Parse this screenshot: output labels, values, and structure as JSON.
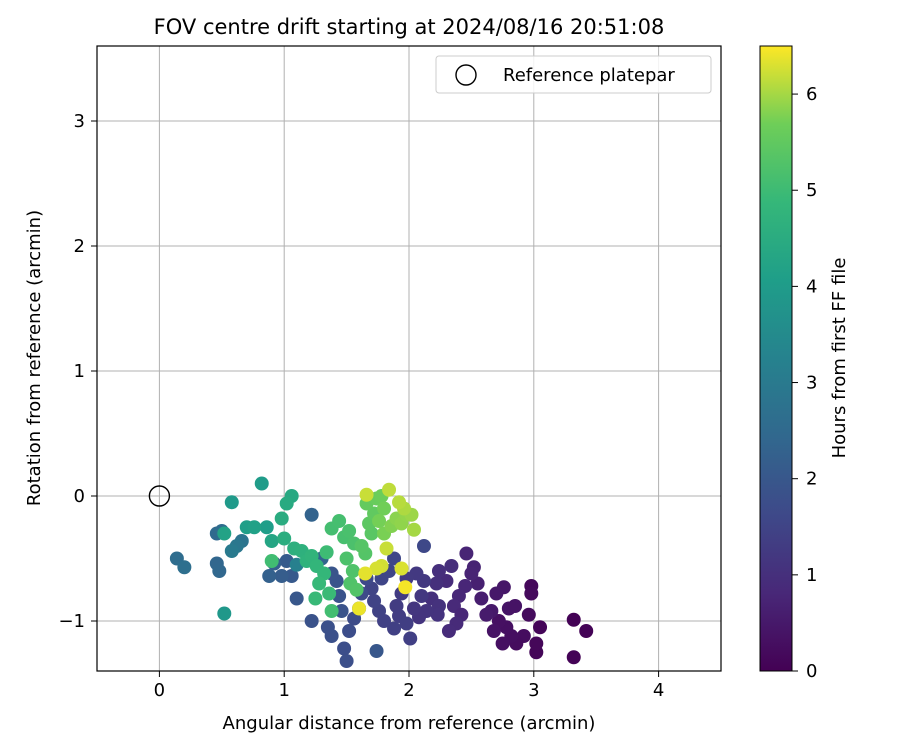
{
  "chart_data": {
    "type": "scatter",
    "title": "FOV centre drift starting at 2024/08/16 20:51:08",
    "xlabel": "Angular distance from reference (arcmin)",
    "ylabel": "Rotation from reference (arcmin)",
    "xlim": [
      -0.5,
      4.5
    ],
    "ylim": [
      -1.4,
      3.6
    ],
    "x_ticks": [
      0,
      1,
      2,
      3,
      4
    ],
    "y_ticks": [
      -1,
      0,
      1,
      2,
      3
    ],
    "x_tick_labels": [
      "0",
      "1",
      "2",
      "3",
      "4"
    ],
    "y_tick_labels": [
      "−1",
      "0",
      "1",
      "2",
      "3"
    ],
    "grid": true,
    "legend": {
      "position": "top-right",
      "entries": [
        {
          "label": "Reference platepar",
          "marker": "open-circle"
        }
      ]
    },
    "reference_point": {
      "x": 0,
      "y": 0
    },
    "colorbar": {
      "label": "Hours from first FF file",
      "colormap": "viridis",
      "range": [
        0,
        6.5
      ],
      "ticks": [
        0,
        1,
        2,
        3,
        4,
        5,
        6
      ],
      "tick_labels": [
        "0",
        "1",
        "2",
        "3",
        "4",
        "5",
        "6"
      ]
    },
    "point_color_value_label": "Hours from first FF file",
    "series": [
      {
        "points": [
          {
            "x": 3.32,
            "y": -1.29,
            "c": 0.05
          },
          {
            "x": 3.02,
            "y": -1.25,
            "c": 0.1
          },
          {
            "x": 3.02,
            "y": -1.18,
            "c": 0.12
          },
          {
            "x": 3.05,
            "y": -1.05,
            "c": 0.08
          },
          {
            "x": 3.32,
            "y": -0.99,
            "c": 0.03
          },
          {
            "x": 3.42,
            "y": -1.08,
            "c": 0.04
          },
          {
            "x": 2.98,
            "y": -0.72,
            "c": 0.15
          },
          {
            "x": 2.98,
            "y": -0.78,
            "c": 0.18
          },
          {
            "x": 2.96,
            "y": -0.95,
            "c": 0.2
          },
          {
            "x": 2.92,
            "y": -1.12,
            "c": 0.25
          },
          {
            "x": 2.86,
            "y": -1.18,
            "c": 0.22
          },
          {
            "x": 2.82,
            "y": -1.12,
            "c": 0.28
          },
          {
            "x": 2.78,
            "y": -1.05,
            "c": 0.3
          },
          {
            "x": 2.72,
            "y": -1.0,
            "c": 0.32
          },
          {
            "x": 2.68,
            "y": -1.08,
            "c": 0.35
          },
          {
            "x": 2.75,
            "y": -1.18,
            "c": 0.3
          },
          {
            "x": 2.8,
            "y": -0.9,
            "c": 0.4
          },
          {
            "x": 2.85,
            "y": -0.88,
            "c": 0.38
          },
          {
            "x": 2.76,
            "y": -0.73,
            "c": 0.45
          },
          {
            "x": 2.7,
            "y": -0.78,
            "c": 0.48
          },
          {
            "x": 2.66,
            "y": -0.92,
            "c": 0.5
          },
          {
            "x": 2.62,
            "y": -0.95,
            "c": 0.55
          },
          {
            "x": 2.58,
            "y": -0.82,
            "c": 0.6
          },
          {
            "x": 2.55,
            "y": -0.7,
            "c": 0.65
          },
          {
            "x": 2.52,
            "y": -0.57,
            "c": 0.7
          },
          {
            "x": 2.46,
            "y": -0.46,
            "c": 0.75
          },
          {
            "x": 2.5,
            "y": -0.62,
            "c": 0.72
          },
          {
            "x": 2.45,
            "y": -0.72,
            "c": 0.78
          },
          {
            "x": 2.4,
            "y": -0.8,
            "c": 0.82
          },
          {
            "x": 2.36,
            "y": -0.88,
            "c": 0.85
          },
          {
            "x": 2.42,
            "y": -0.95,
            "c": 0.8
          },
          {
            "x": 2.38,
            "y": -1.02,
            "c": 0.88
          },
          {
            "x": 2.32,
            "y": -1.08,
            "c": 0.9
          },
          {
            "x": 2.3,
            "y": -0.68,
            "c": 0.92
          },
          {
            "x": 2.34,
            "y": -0.56,
            "c": 0.95
          },
          {
            "x": 2.24,
            "y": -0.6,
            "c": 0.98
          },
          {
            "x": 2.22,
            "y": -0.7,
            "c": 1.0
          },
          {
            "x": 2.18,
            "y": -0.82,
            "c": 1.02
          },
          {
            "x": 2.24,
            "y": -0.88,
            "c": 1.05
          },
          {
            "x": 2.23,
            "y": -0.95,
            "c": 1.08
          },
          {
            "x": 2.14,
            "y": -0.92,
            "c": 1.1
          },
          {
            "x": 2.08,
            "y": -0.97,
            "c": 1.12
          },
          {
            "x": 2.04,
            "y": -0.9,
            "c": 1.15
          },
          {
            "x": 2.1,
            "y": -0.8,
            "c": 1.18
          },
          {
            "x": 2.12,
            "y": -0.68,
            "c": 1.2
          },
          {
            "x": 2.06,
            "y": -0.62,
            "c": 1.22
          },
          {
            "x": 1.98,
            "y": -0.66,
            "c": 1.25
          },
          {
            "x": 1.94,
            "y": -0.78,
            "c": 1.28
          },
          {
            "x": 1.9,
            "y": -0.88,
            "c": 1.3
          },
          {
            "x": 1.92,
            "y": -0.96,
            "c": 1.32
          },
          {
            "x": 1.98,
            "y": -1.02,
            "c": 1.35
          },
          {
            "x": 2.01,
            "y": -1.14,
            "c": 1.38
          },
          {
            "x": 1.88,
            "y": -1.06,
            "c": 1.4
          },
          {
            "x": 1.8,
            "y": -1.0,
            "c": 1.42
          },
          {
            "x": 1.76,
            "y": -0.92,
            "c": 1.45
          },
          {
            "x": 1.72,
            "y": -0.84,
            "c": 1.48
          },
          {
            "x": 1.7,
            "y": -0.74,
            "c": 1.5
          },
          {
            "x": 1.78,
            "y": -0.66,
            "c": 1.52
          },
          {
            "x": 1.84,
            "y": -0.6,
            "c": 1.55
          },
          {
            "x": 1.88,
            "y": -0.5,
            "c": 1.58
          },
          {
            "x": 2.12,
            "y": -0.4,
            "c": 1.6
          },
          {
            "x": 1.66,
            "y": -0.66,
            "c": 1.62
          },
          {
            "x": 1.62,
            "y": -0.78,
            "c": 1.65
          },
          {
            "x": 1.6,
            "y": -0.9,
            "c": 1.68
          },
          {
            "x": 1.56,
            "y": -0.98,
            "c": 1.7
          },
          {
            "x": 1.52,
            "y": -1.08,
            "c": 1.72
          },
          {
            "x": 1.48,
            "y": -1.22,
            "c": 1.75
          },
          {
            "x": 1.5,
            "y": -1.32,
            "c": 1.78
          },
          {
            "x": 1.38,
            "y": -1.12,
            "c": 1.8
          },
          {
            "x": 1.35,
            "y": -1.05,
            "c": 1.82
          },
          {
            "x": 1.22,
            "y": -1.0,
            "c": 1.85
          },
          {
            "x": 1.46,
            "y": -0.92,
            "c": 1.88
          },
          {
            "x": 1.44,
            "y": -0.8,
            "c": 1.9
          },
          {
            "x": 1.42,
            "y": -0.68,
            "c": 1.92
          },
          {
            "x": 1.38,
            "y": -0.62,
            "c": 1.95
          },
          {
            "x": 1.74,
            "y": -1.24,
            "c": 1.98
          },
          {
            "x": 1.1,
            "y": -0.82,
            "c": 2.0
          },
          {
            "x": 1.06,
            "y": -0.64,
            "c": 2.05
          },
          {
            "x": 1.02,
            "y": -0.52,
            "c": 2.1
          },
          {
            "x": 0.98,
            "y": -0.64,
            "c": 2.15
          },
          {
            "x": 0.92,
            "y": -0.54,
            "c": 2.2
          },
          {
            "x": 0.88,
            "y": -0.64,
            "c": 2.25
          },
          {
            "x": 1.22,
            "y": -0.15,
            "c": 2.3
          },
          {
            "x": 1.3,
            "y": -0.5,
            "c": 2.35
          },
          {
            "x": 0.46,
            "y": -0.54,
            "c": 2.4
          },
          {
            "x": 0.48,
            "y": -0.6,
            "c": 2.45
          },
          {
            "x": 0.46,
            "y": -0.3,
            "c": 2.5
          },
          {
            "x": 0.5,
            "y": -0.28,
            "c": 2.55
          },
          {
            "x": 0.14,
            "y": -0.5,
            "c": 2.6
          },
          {
            "x": 0.2,
            "y": -0.57,
            "c": 2.65
          },
          {
            "x": 0.66,
            "y": -0.36,
            "c": 2.8
          },
          {
            "x": 0.62,
            "y": -0.4,
            "c": 2.9
          },
          {
            "x": 0.58,
            "y": -0.44,
            "c": 3.0
          },
          {
            "x": 1.1,
            "y": -0.55,
            "c": 3.2
          },
          {
            "x": 0.52,
            "y": -0.94,
            "c": 3.9
          },
          {
            "x": 0.58,
            "y": -0.05,
            "c": 3.95
          },
          {
            "x": 0.82,
            "y": 0.1,
            "c": 4.0
          },
          {
            "x": 0.86,
            "y": -0.25,
            "c": 4.05
          },
          {
            "x": 0.7,
            "y": -0.25,
            "c": 4.1
          },
          {
            "x": 0.76,
            "y": -0.25,
            "c": 4.15
          },
          {
            "x": 0.52,
            "y": -0.3,
            "c": 4.2
          },
          {
            "x": 0.9,
            "y": -0.36,
            "c": 4.3
          },
          {
            "x": 1.06,
            "y": 0.0,
            "c": 4.4
          },
          {
            "x": 1.02,
            "y": -0.06,
            "c": 4.45
          },
          {
            "x": 0.98,
            "y": -0.18,
            "c": 4.5
          },
          {
            "x": 1.0,
            "y": -0.34,
            "c": 4.55
          },
          {
            "x": 1.08,
            "y": -0.42,
            "c": 4.6
          },
          {
            "x": 1.14,
            "y": -0.44,
            "c": 4.65
          },
          {
            "x": 1.18,
            "y": -0.52,
            "c": 4.7
          },
          {
            "x": 1.22,
            "y": -0.48,
            "c": 4.75
          },
          {
            "x": 1.26,
            "y": -0.56,
            "c": 4.8
          },
          {
            "x": 1.32,
            "y": -0.62,
            "c": 4.85
          },
          {
            "x": 1.28,
            "y": -0.7,
            "c": 4.9
          },
          {
            "x": 1.25,
            "y": -0.82,
            "c": 4.92
          },
          {
            "x": 1.36,
            "y": -0.78,
            "c": 4.95
          },
          {
            "x": 1.34,
            "y": -0.45,
            "c": 5.0
          },
          {
            "x": 0.9,
            "y": -0.52,
            "c": 5.05
          },
          {
            "x": 1.38,
            "y": -0.92,
            "c": 5.08
          },
          {
            "x": 1.38,
            "y": -0.26,
            "c": 5.1
          },
          {
            "x": 1.44,
            "y": -0.2,
            "c": 5.12
          },
          {
            "x": 1.48,
            "y": -0.33,
            "c": 5.15
          },
          {
            "x": 1.52,
            "y": -0.28,
            "c": 5.18
          },
          {
            "x": 1.56,
            "y": -0.38,
            "c": 5.2
          },
          {
            "x": 1.5,
            "y": -0.5,
            "c": 5.22
          },
          {
            "x": 1.55,
            "y": -0.6,
            "c": 5.25
          },
          {
            "x": 1.53,
            "y": -0.7,
            "c": 5.28
          },
          {
            "x": 1.58,
            "y": -0.75,
            "c": 5.3
          },
          {
            "x": 1.65,
            "y": -0.46,
            "c": 5.32
          },
          {
            "x": 1.62,
            "y": -0.4,
            "c": 5.35
          },
          {
            "x": 1.7,
            "y": -0.3,
            "c": 5.4
          },
          {
            "x": 1.68,
            "y": -0.22,
            "c": 5.45
          },
          {
            "x": 1.72,
            "y": -0.14,
            "c": 5.5
          },
          {
            "x": 1.66,
            "y": -0.06,
            "c": 5.55
          },
          {
            "x": 1.74,
            "y": -0.02,
            "c": 5.6
          },
          {
            "x": 1.78,
            "y": 0.0,
            "c": 5.65
          },
          {
            "x": 1.8,
            "y": -0.1,
            "c": 5.7
          },
          {
            "x": 1.76,
            "y": -0.2,
            "c": 5.72
          },
          {
            "x": 1.8,
            "y": -0.3,
            "c": 5.75
          },
          {
            "x": 1.86,
            "y": -0.24,
            "c": 5.8
          },
          {
            "x": 1.9,
            "y": -0.18,
            "c": 5.85
          },
          {
            "x": 1.94,
            "y": -0.22,
            "c": 5.88
          },
          {
            "x": 1.98,
            "y": -0.15,
            "c": 5.9
          },
          {
            "x": 2.02,
            "y": -0.15,
            "c": 5.95
          },
          {
            "x": 2.04,
            "y": -0.27,
            "c": 6.0
          },
          {
            "x": 1.96,
            "y": -0.1,
            "c": 6.05
          },
          {
            "x": 1.92,
            "y": -0.05,
            "c": 6.1
          },
          {
            "x": 1.84,
            "y": 0.05,
            "c": 6.15
          },
          {
            "x": 1.82,
            "y": -0.42,
            "c": 6.2
          },
          {
            "x": 1.78,
            "y": -0.56,
            "c": 6.25
          },
          {
            "x": 1.74,
            "y": -0.58,
            "c": 6.28
          },
          {
            "x": 1.94,
            "y": -0.58,
            "c": 6.3
          },
          {
            "x": 1.65,
            "y": -0.62,
            "c": 6.35
          },
          {
            "x": 1.6,
            "y": -0.9,
            "c": 6.4
          },
          {
            "x": 1.97,
            "y": -0.73,
            "c": 6.45
          },
          {
            "x": 1.66,
            "y": 0.01,
            "c": 6.2
          }
        ]
      }
    ]
  }
}
